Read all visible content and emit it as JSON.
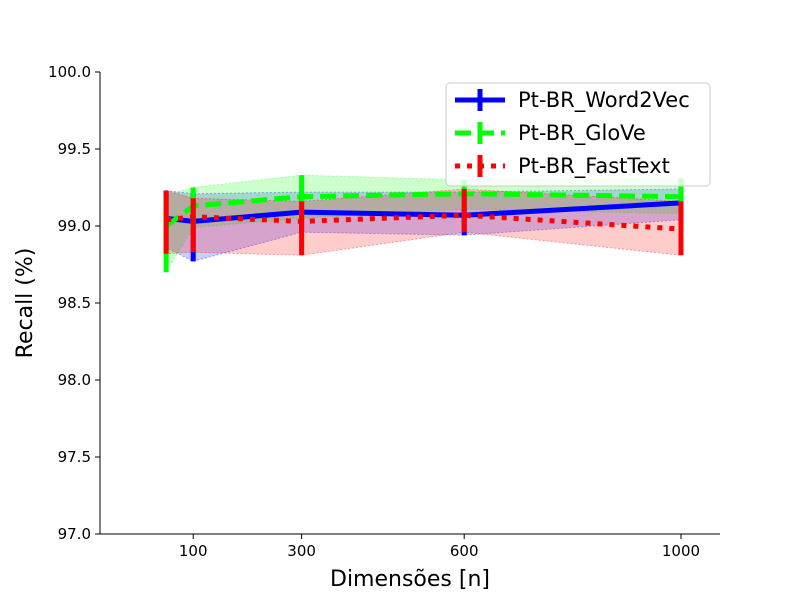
{
  "chart_data": {
    "type": "line",
    "title": "",
    "xlabel": "Dimensões [n]",
    "ylabel": "Recall (%)",
    "xlim": [
      -72,
      1072
    ],
    "ylim": [
      97.0,
      100.0
    ],
    "xticks": [
      100,
      300,
      600,
      1000
    ],
    "xtick_labels": [
      "100",
      "300",
      "600",
      "1000"
    ],
    "yticks": [
      97.0,
      97.5,
      98.0,
      98.5,
      99.0,
      99.5,
      100.0
    ],
    "ytick_labels": [
      "97.0",
      "97.5",
      "98.0",
      "98.5",
      "99.0",
      "99.5",
      "100.0"
    ],
    "grid": false,
    "legend_position": "top-right",
    "x": [
      50,
      100,
      300,
      600,
      1000
    ],
    "series": [
      {
        "name": "Pt-BR_Word2Vec",
        "color": "#0000ff",
        "linestyle": "solid",
        "values": [
          99.05,
          99.03,
          99.09,
          99.07,
          99.15
        ],
        "lower": [
          98.86,
          98.77,
          98.96,
          98.94,
          99.04
        ],
        "upper": [
          99.23,
          99.21,
          99.22,
          99.22,
          99.24
        ]
      },
      {
        "name": "Pt-BR_GloVe",
        "color": "#00ff00",
        "linestyle": "dashed",
        "values": [
          99.0,
          99.13,
          99.19,
          99.21,
          99.19
        ],
        "lower": [
          98.7,
          98.99,
          99.05,
          99.11,
          99.08
        ],
        "upper": [
          99.2,
          99.25,
          99.33,
          99.3,
          99.31
        ]
      },
      {
        "name": "Pt-BR_FastText",
        "color": "#ff0000",
        "linestyle": "dotted",
        "values": [
          99.04,
          99.06,
          99.03,
          99.07,
          98.98
        ],
        "lower": [
          98.82,
          98.83,
          98.81,
          98.96,
          98.81
        ],
        "upper": [
          99.23,
          99.18,
          99.16,
          99.24,
          99.16
        ]
      }
    ]
  }
}
